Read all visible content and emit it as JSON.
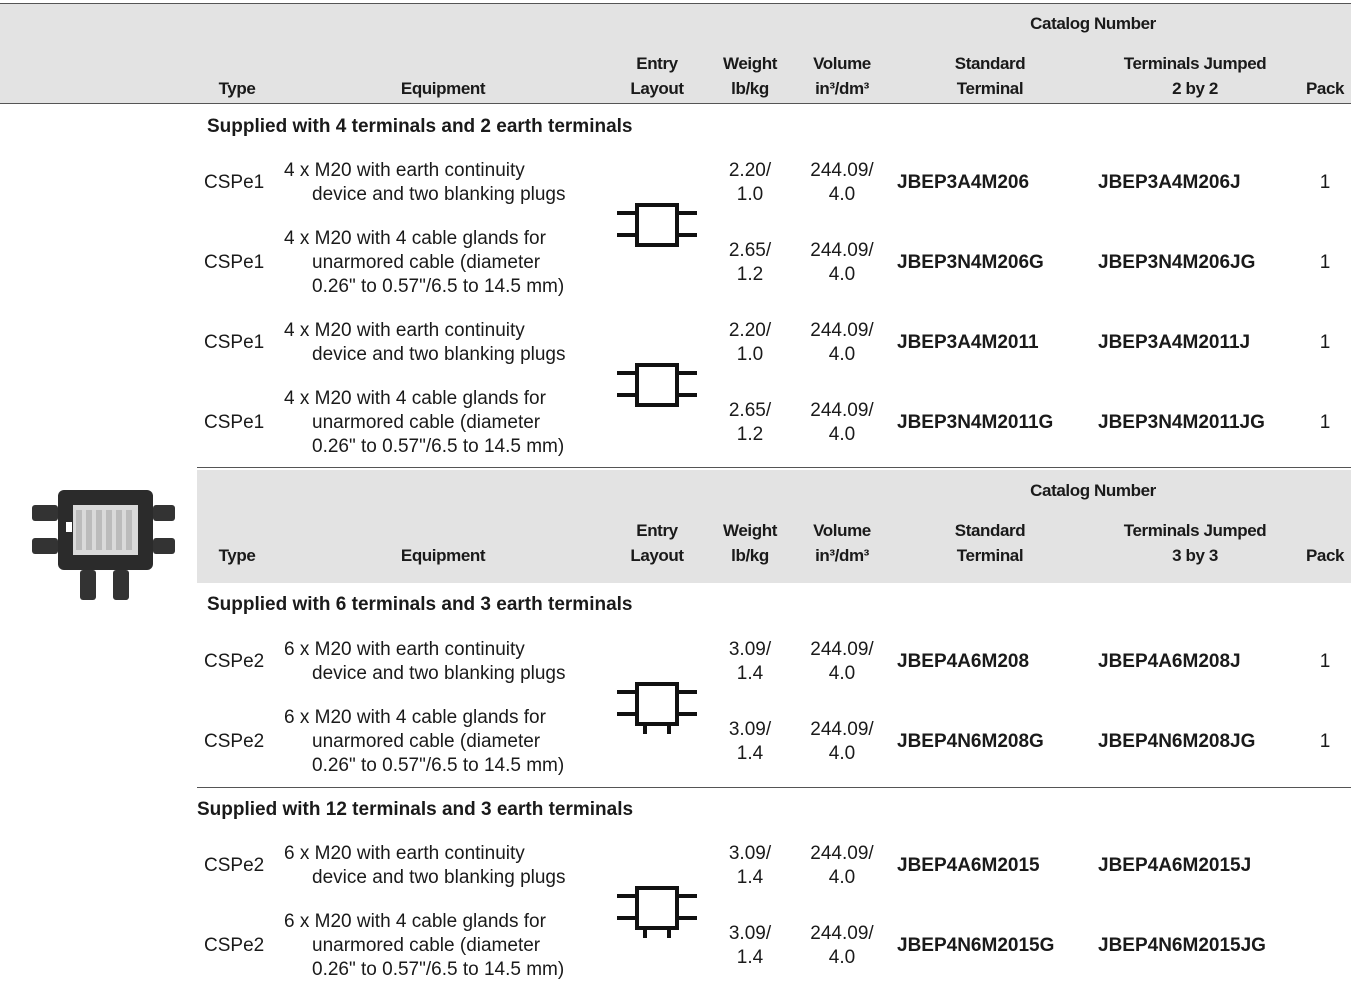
{
  "sections": [
    {
      "header": {
        "catalog_number": "Catalog Number",
        "columns": [
          "Type",
          "Equipment",
          "Entry\nLayout",
          "Weight\nlb/kg",
          "Volume\nin³/dm³",
          "Standard\nTerminal",
          "Terminals Jumped\n2 by 2",
          "Pack"
        ]
      },
      "groups": [
        {
          "label": "Supplied with 4 terminals and 2 earth terminals",
          "rows": [
            {
              "type": "CSPe1",
              "equipment": "4 x M20 with earth continuity\ndevice and two blanking plugs",
              "weight": "2.20/\n1.0",
              "volume": "244.09/\n4.0",
              "standard": "JBEP3A4M206",
              "jumped": "JBEP3A4M206J",
              "pack": 1
            },
            {
              "type": "CSPe1",
              "equipment": "4 x M20 with 4 cable glands for\nunarmored cable (diameter\n0.26\" to 0.57\"/6.5 to 14.5 mm)",
              "weight": "2.65/\n1.2",
              "volume": "244.09/\n4.0",
              "standard": "JBEP3N4M206G",
              "jumped": "JBEP3N4M206JG",
              "pack": 1
            },
            {
              "type": "CSPe1",
              "equipment": "4 x M20 with earth continuity\ndevice and two blanking plugs",
              "weight": "2.20/\n1.0",
              "volume": "244.09/\n4.0",
              "standard": "JBEP3A4M2011",
              "jumped": "JBEP3A4M2011J",
              "pack": 1
            },
            {
              "type": "CSPe1",
              "equipment": "4 x M20 with 4 cable glands for\nunarmored cable (diameter\n0.26\" to 0.57\"/6.5 to 14.5 mm)",
              "weight": "2.65/\n1.2",
              "volume": "244.09/\n4.0",
              "standard": "JBEP3N4M2011G",
              "jumped": "JBEP3N4M2011JG",
              "pack": 1
            }
          ]
        }
      ]
    },
    {
      "header": {
        "catalog_number": "Catalog Number",
        "columns": [
          "Type",
          "Equipment",
          "Entry\nLayout",
          "Weight\nlb/kg",
          "Volume\nin³/dm³",
          "Standard\nTerminal",
          "Terminals Jumped\n3 by 3",
          "Pack"
        ]
      },
      "groups": [
        {
          "label": "Supplied with 6 terminals and 3 earth terminals",
          "rows": [
            {
              "type": "CSPe2",
              "equipment": "6 x M20 with earth continuity\ndevice and two blanking plugs",
              "weight": "3.09/\n1.4",
              "volume": "244.09/\n4.0",
              "standard": "JBEP4A6M208",
              "jumped": "JBEP4A6M208J",
              "pack": 1
            },
            {
              "type": "CSPe2",
              "equipment": "6 x M20 with 4 cable glands for\nunarmored cable (diameter\n0.26\" to 0.57\"/6.5 to 14.5 mm)",
              "weight": "3.09/\n1.4",
              "volume": "244.09/\n4.0",
              "standard": "JBEP4N6M208G",
              "jumped": "JBEP4N6M208JG",
              "pack": 1
            }
          ]
        },
        {
          "label": "Supplied with 12 terminals and 3 earth terminals",
          "rows": [
            {
              "type": "CSPe2",
              "equipment": "6 x M20 with earth continuity\ndevice and two blanking plugs",
              "weight": "3.09/\n1.4",
              "volume": "244.09/\n4.0",
              "standard": "JBEP4A6M2015",
              "jumped": "JBEP4A6M2015J"
            },
            {
              "type": "CSPe2",
              "equipment": "6 x M20 with 4 cable glands for\nunarmored cable (diameter\n0.26\" to 0.57\"/6.5 to 14.5 mm)",
              "weight": "3.09/\n1.4",
              "volume": "244.09/\n4.0",
              "standard": "JBEP4N6M2015G",
              "jumped": "JBEP4N6M2015JG"
            }
          ]
        }
      ]
    }
  ]
}
